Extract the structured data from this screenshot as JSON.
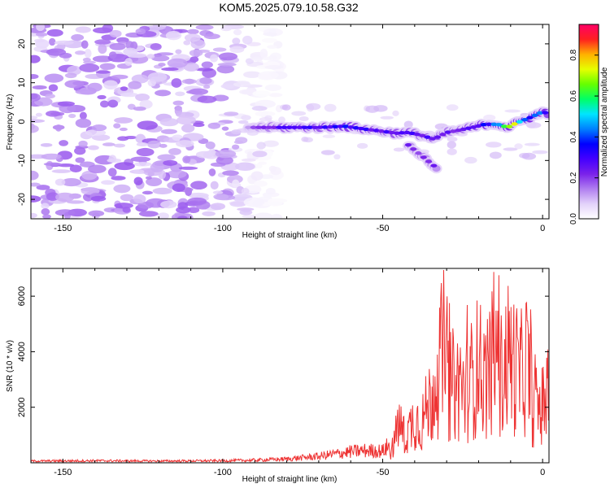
{
  "title": "KOM5.2025.079.10.58.G32",
  "chart_data": [
    {
      "type": "heatmap",
      "xlabel": "Height of straight line (km)",
      "ylabel": "Frequency (Hz)",
      "xlim": [
        -160,
        2
      ],
      "ylim": [
        -25,
        25
      ],
      "xticks": [
        -150,
        -100,
        -50,
        0
      ],
      "yticks": [
        -20,
        -10,
        0,
        10,
        20
      ],
      "colorbar": {
        "label": "Normalized spectral amplitude",
        "range": [
          0,
          0.95
        ],
        "ticks": [
          "0.0",
          "0.2",
          "0.4",
          "0.6",
          "0.8"
        ],
        "colormap": [
          "#ffffff",
          "#e3d2fa",
          "#b07ef0",
          "#7a22ea",
          "#4400ff",
          "#0000ff",
          "#0080ff",
          "#00e5ff",
          "#00ff66",
          "#66ff00",
          "#e6ff00",
          "#ffb000",
          "#ff2020",
          "#ff0066"
        ]
      },
      "noise_region": {
        "x_range": [
          -160,
          -90
        ],
        "y_range": [
          -25,
          25
        ],
        "peak_amplitude": 0.18
      },
      "ridge": {
        "x": [
          -92,
          -85,
          -78,
          -70,
          -62,
          -55,
          -50,
          -46,
          -42,
          -38,
          -34,
          -30,
          -26,
          -22,
          -18,
          -14,
          -11,
          -8,
          -4,
          0,
          2
        ],
        "frequency": [
          -1.5,
          -1.5,
          -1.5,
          -1.5,
          -1.2,
          -2.0,
          -2.5,
          -3.0,
          -2.8,
          -3.5,
          -4.5,
          -2.8,
          -2.2,
          -1.5,
          -0.7,
          -0.7,
          -1.5,
          -0.3,
          1.0,
          2.5,
          2.0
        ],
        "amplitude": [
          0.15,
          0.25,
          0.3,
          0.3,
          0.35,
          0.3,
          0.28,
          0.3,
          0.3,
          0.25,
          0.3,
          0.25,
          0.25,
          0.3,
          0.35,
          0.45,
          0.9,
          0.65,
          0.4,
          0.4,
          0.3
        ]
      },
      "branch": {
        "x": [
          -42,
          -39,
          -36,
          -33
        ],
        "frequency": [
          -6,
          -8,
          -10,
          -12
        ]
      }
    },
    {
      "type": "line",
      "xlabel": "Height of straight line (km)",
      "ylabel": "SNR (10 * v/v)",
      "xlim": [
        -160,
        2
      ],
      "ylim": [
        0,
        7000
      ],
      "xticks": [
        -150,
        -100,
        -50,
        0
      ],
      "yticks": [
        2000,
        4000,
        6000
      ],
      "series": [
        {
          "color": "#ee3333",
          "x": [
            -160,
            -140,
            -120,
            -100,
            -90,
            -80,
            -70,
            -60,
            -55,
            -50,
            -47,
            -45,
            -43,
            -40,
            -38,
            -36,
            -34,
            -32,
            -31,
            -30,
            -29,
            -27,
            -25,
            -23,
            -20,
            -18,
            -15,
            -13,
            -11,
            -9,
            -7,
            -5,
            -3,
            0,
            2
          ],
          "y": [
            60,
            70,
            60,
            70,
            90,
            130,
            220,
            380,
            420,
            400,
            700,
            2400,
            1500,
            2700,
            2300,
            3300,
            4300,
            5900,
            6800,
            5200,
            4600,
            4700,
            4300,
            4700,
            5900,
            4900,
            6300,
            5200,
            6400,
            6000,
            5100,
            6200,
            3300,
            3400,
            4000
          ]
        }
      ]
    }
  ]
}
